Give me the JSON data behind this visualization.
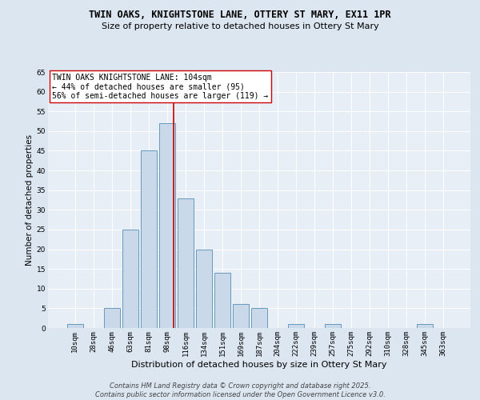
{
  "title": "TWIN OAKS, KNIGHTSTONE LANE, OTTERY ST MARY, EX11 1PR",
  "subtitle": "Size of property relative to detached houses in Ottery St Mary",
  "xlabel": "Distribution of detached houses by size in Ottery St Mary",
  "ylabel": "Number of detached properties",
  "bar_labels": [
    "10sqm",
    "28sqm",
    "46sqm",
    "63sqm",
    "81sqm",
    "98sqm",
    "116sqm",
    "134sqm",
    "151sqm",
    "169sqm",
    "187sqm",
    "204sqm",
    "222sqm",
    "239sqm",
    "257sqm",
    "275sqm",
    "292sqm",
    "310sqm",
    "328sqm",
    "345sqm",
    "363sqm"
  ],
  "bar_values": [
    1,
    0,
    5,
    25,
    45,
    52,
    33,
    20,
    14,
    6,
    5,
    0,
    1,
    0,
    1,
    0,
    0,
    0,
    0,
    1,
    0
  ],
  "bar_color": "#c9d9ea",
  "bar_edgecolor": "#6699bb",
  "vline_x": 5.333,
  "vline_color": "#cc0000",
  "annotation_text": "TWIN OAKS KNIGHTSTONE LANE: 104sqm\n← 44% of detached houses are smaller (95)\n56% of semi-detached houses are larger (119) →",
  "annotation_box_color": "#ffffff",
  "annotation_box_edgecolor": "#cc0000",
  "ylim": [
    0,
    65
  ],
  "yticks": [
    0,
    5,
    10,
    15,
    20,
    25,
    30,
    35,
    40,
    45,
    50,
    55,
    60,
    65
  ],
  "bg_color": "#dce6f0",
  "plot_bg_color": "#e8eef5",
  "footer_text": "Contains HM Land Registry data © Crown copyright and database right 2025.\nContains public sector information licensed under the Open Government Licence v3.0.",
  "title_fontsize": 8.5,
  "subtitle_fontsize": 8,
  "xlabel_fontsize": 8,
  "ylabel_fontsize": 7.5,
  "tick_fontsize": 6.5,
  "annotation_fontsize": 7,
  "footer_fontsize": 6
}
